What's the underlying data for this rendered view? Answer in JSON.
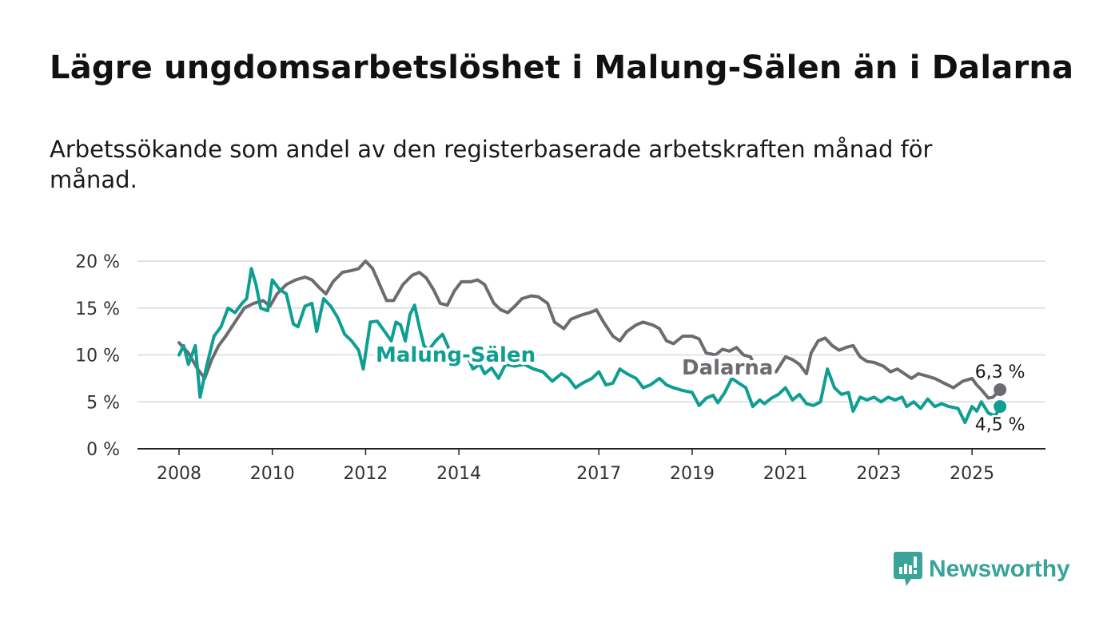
{
  "title": "Lägre ungdomsarbetslöshet i Malung-Sälen än i Dalarna",
  "subtitle": "Arbetssökande som andel av den registerbaserade arbetskraften månad för månad.",
  "brand": {
    "name": "Newsworthy",
    "color": "#3aa39a",
    "icon": "newsworthy-logo-icon"
  },
  "chart_data": {
    "type": "line",
    "title": "Lägre ungdomsarbetslöshet i Malung-Sälen än i Dalarna",
    "subtitle": "Arbetssökande som andel av den registerbaserade arbetskraften månad för månad.",
    "xlabel": "",
    "ylabel": "",
    "xlim": [
      2008.0,
      2025.7
    ],
    "ylim": [
      0,
      20
    ],
    "y_ticks": [
      0,
      5,
      10,
      15,
      20
    ],
    "y_tick_labels": [
      "0 %",
      "5 %",
      "10 %",
      "15 %",
      "20 %"
    ],
    "x_ticks": [
      2008,
      2010,
      2012,
      2014,
      2017,
      2019,
      2021,
      2023,
      2025
    ],
    "x_tick_labels": [
      "2008",
      "2010",
      "2012",
      "2014",
      "2017",
      "2019",
      "2021",
      "2023",
      "2025"
    ],
    "grid": true,
    "series": [
      {
        "name": "Dalarna",
        "color": "#6e6b70",
        "end_label": "6,3 %",
        "points": [
          [
            2008.0,
            11.3
          ],
          [
            2008.2,
            10.2
          ],
          [
            2008.4,
            8.5
          ],
          [
            2008.55,
            7.5
          ],
          [
            2008.7,
            9.5
          ],
          [
            2008.85,
            11.0
          ],
          [
            2009.0,
            12.0
          ],
          [
            2009.2,
            13.5
          ],
          [
            2009.4,
            15.0
          ],
          [
            2009.6,
            15.5
          ],
          [
            2009.8,
            15.8
          ],
          [
            2009.95,
            15.2
          ],
          [
            2010.1,
            16.5
          ],
          [
            2010.3,
            17.5
          ],
          [
            2010.5,
            18.0
          ],
          [
            2010.7,
            18.3
          ],
          [
            2010.85,
            18.0
          ],
          [
            2011.0,
            17.2
          ],
          [
            2011.15,
            16.5
          ],
          [
            2011.3,
            17.8
          ],
          [
            2011.5,
            18.8
          ],
          [
            2011.7,
            19.0
          ],
          [
            2011.85,
            19.2
          ],
          [
            2012.0,
            20.0
          ],
          [
            2012.15,
            19.2
          ],
          [
            2012.3,
            17.5
          ],
          [
            2012.45,
            15.8
          ],
          [
            2012.6,
            15.8
          ],
          [
            2012.8,
            17.5
          ],
          [
            2013.0,
            18.5
          ],
          [
            2013.15,
            18.8
          ],
          [
            2013.3,
            18.2
          ],
          [
            2013.45,
            17.0
          ],
          [
            2013.6,
            15.5
          ],
          [
            2013.75,
            15.3
          ],
          [
            2013.9,
            16.8
          ],
          [
            2014.05,
            17.8
          ],
          [
            2014.25,
            17.8
          ],
          [
            2014.4,
            18.0
          ],
          [
            2014.55,
            17.5
          ],
          [
            2014.75,
            15.5
          ],
          [
            2014.9,
            14.8
          ],
          [
            2015.05,
            14.5
          ],
          [
            2015.2,
            15.2
          ],
          [
            2015.35,
            16.0
          ],
          [
            2015.55,
            16.3
          ],
          [
            2015.7,
            16.2
          ],
          [
            2015.9,
            15.5
          ],
          [
            2016.05,
            13.5
          ],
          [
            2016.25,
            12.8
          ],
          [
            2016.4,
            13.8
          ],
          [
            2016.6,
            14.2
          ],
          [
            2016.8,
            14.5
          ],
          [
            2016.95,
            14.8
          ],
          [
            2017.1,
            13.5
          ],
          [
            2017.3,
            12.0
          ],
          [
            2017.45,
            11.5
          ],
          [
            2017.6,
            12.5
          ],
          [
            2017.8,
            13.2
          ],
          [
            2017.95,
            13.5
          ],
          [
            2018.15,
            13.2
          ],
          [
            2018.3,
            12.8
          ],
          [
            2018.45,
            11.5
          ],
          [
            2018.6,
            11.2
          ],
          [
            2018.8,
            12.0
          ],
          [
            2019.0,
            12.0
          ],
          [
            2019.15,
            11.7
          ],
          [
            2019.3,
            10.2
          ],
          [
            2019.5,
            10.0
          ],
          [
            2019.65,
            10.6
          ],
          [
            2019.8,
            10.4
          ],
          [
            2019.95,
            10.8
          ],
          [
            2020.1,
            10.0
          ],
          [
            2020.25,
            9.8
          ],
          [
            2020.4,
            8.3
          ],
          [
            2020.6,
            8.0
          ],
          [
            2020.8,
            8.2
          ],
          [
            2021.0,
            9.8
          ],
          [
            2021.15,
            9.5
          ],
          [
            2021.3,
            9.0
          ],
          [
            2021.45,
            8.0
          ],
          [
            2021.55,
            10.2
          ],
          [
            2021.7,
            11.5
          ],
          [
            2021.85,
            11.8
          ],
          [
            2022.0,
            11.0
          ],
          [
            2022.15,
            10.5
          ],
          [
            2022.3,
            10.8
          ],
          [
            2022.45,
            11.0
          ],
          [
            2022.6,
            9.8
          ],
          [
            2022.75,
            9.3
          ],
          [
            2022.9,
            9.2
          ],
          [
            2023.1,
            8.8
          ],
          [
            2023.25,
            8.2
          ],
          [
            2023.4,
            8.5
          ],
          [
            2023.55,
            8.0
          ],
          [
            2023.7,
            7.5
          ],
          [
            2023.85,
            8.0
          ],
          [
            2024.0,
            7.8
          ],
          [
            2024.2,
            7.5
          ],
          [
            2024.4,
            7.0
          ],
          [
            2024.6,
            6.5
          ],
          [
            2024.8,
            7.2
          ],
          [
            2025.0,
            7.5
          ],
          [
            2025.1,
            6.8
          ],
          [
            2025.2,
            6.3
          ],
          [
            2025.35,
            5.4
          ],
          [
            2025.45,
            5.5
          ],
          [
            2025.6,
            6.3
          ]
        ]
      },
      {
        "name": "Malung-Sälen",
        "color": "#0e9e92",
        "end_label": "4,5 %",
        "points": [
          [
            2008.0,
            10.0
          ],
          [
            2008.1,
            11.0
          ],
          [
            2008.2,
            9.0
          ],
          [
            2008.35,
            11.0
          ],
          [
            2008.45,
            5.5
          ],
          [
            2008.6,
            9.0
          ],
          [
            2008.75,
            12.0
          ],
          [
            2008.9,
            13.0
          ],
          [
            2009.05,
            15.0
          ],
          [
            2009.2,
            14.5
          ],
          [
            2009.35,
            15.5
          ],
          [
            2009.45,
            16.0
          ],
          [
            2009.55,
            19.2
          ],
          [
            2009.65,
            17.5
          ],
          [
            2009.75,
            15.0
          ],
          [
            2009.9,
            14.7
          ],
          [
            2010.0,
            18.0
          ],
          [
            2010.15,
            17.0
          ],
          [
            2010.3,
            16.5
          ],
          [
            2010.45,
            13.3
          ],
          [
            2010.55,
            13.0
          ],
          [
            2010.7,
            15.2
          ],
          [
            2010.85,
            15.5
          ],
          [
            2010.95,
            12.5
          ],
          [
            2011.1,
            16.0
          ],
          [
            2011.25,
            15.2
          ],
          [
            2011.4,
            14.0
          ],
          [
            2011.55,
            12.2
          ],
          [
            2011.7,
            11.5
          ],
          [
            2011.85,
            10.5
          ],
          [
            2011.95,
            8.5
          ],
          [
            2012.1,
            13.5
          ],
          [
            2012.25,
            13.6
          ],
          [
            2012.45,
            12.2
          ],
          [
            2012.55,
            11.5
          ],
          [
            2012.65,
            13.5
          ],
          [
            2012.75,
            13.2
          ],
          [
            2012.85,
            11.5
          ],
          [
            2012.95,
            14.3
          ],
          [
            2013.05,
            15.3
          ],
          [
            2013.15,
            13.0
          ],
          [
            2013.25,
            11.0
          ],
          [
            2013.35,
            10.5
          ],
          [
            2013.5,
            11.5
          ],
          [
            2013.65,
            12.2
          ],
          [
            2013.8,
            10.5
          ],
          [
            2014.0,
            9.5
          ],
          [
            2014.15,
            10.2
          ],
          [
            2014.3,
            8.5
          ],
          [
            2014.45,
            9.0
          ],
          [
            2014.55,
            8.0
          ],
          [
            2014.7,
            8.6
          ],
          [
            2014.85,
            7.5
          ],
          [
            2015.0,
            9.0
          ],
          [
            2015.2,
            8.8
          ],
          [
            2015.4,
            9.0
          ],
          [
            2015.6,
            8.5
          ],
          [
            2015.8,
            8.2
          ],
          [
            2016.0,
            7.2
          ],
          [
            2016.2,
            8.0
          ],
          [
            2016.35,
            7.5
          ],
          [
            2016.5,
            6.5
          ],
          [
            2016.65,
            7.0
          ],
          [
            2016.85,
            7.5
          ],
          [
            2017.0,
            8.2
          ],
          [
            2017.15,
            6.8
          ],
          [
            2017.3,
            7.0
          ],
          [
            2017.45,
            8.5
          ],
          [
            2017.6,
            8.0
          ],
          [
            2017.8,
            7.5
          ],
          [
            2017.95,
            6.5
          ],
          [
            2018.1,
            6.8
          ],
          [
            2018.3,
            7.5
          ],
          [
            2018.45,
            6.8
          ],
          [
            2018.6,
            6.5
          ],
          [
            2018.8,
            6.2
          ],
          [
            2019.0,
            6.0
          ],
          [
            2019.15,
            4.6
          ],
          [
            2019.3,
            5.4
          ],
          [
            2019.45,
            5.7
          ],
          [
            2019.55,
            4.9
          ],
          [
            2019.7,
            6.0
          ],
          [
            2019.85,
            7.5
          ],
          [
            2020.0,
            7.0
          ],
          [
            2020.15,
            6.5
          ],
          [
            2020.3,
            4.5
          ],
          [
            2020.45,
            5.2
          ],
          [
            2020.55,
            4.8
          ],
          [
            2020.7,
            5.4
          ],
          [
            2020.85,
            5.8
          ],
          [
            2021.0,
            6.5
          ],
          [
            2021.15,
            5.2
          ],
          [
            2021.3,
            5.8
          ],
          [
            2021.45,
            4.8
          ],
          [
            2021.6,
            4.6
          ],
          [
            2021.75,
            5.0
          ],
          [
            2021.9,
            8.5
          ],
          [
            2022.05,
            6.5
          ],
          [
            2022.2,
            5.8
          ],
          [
            2022.35,
            6.0
          ],
          [
            2022.45,
            4.0
          ],
          [
            2022.6,
            5.5
          ],
          [
            2022.75,
            5.2
          ],
          [
            2022.9,
            5.5
          ],
          [
            2023.05,
            5.0
          ],
          [
            2023.2,
            5.5
          ],
          [
            2023.35,
            5.2
          ],
          [
            2023.5,
            5.5
          ],
          [
            2023.6,
            4.5
          ],
          [
            2023.75,
            5.0
          ],
          [
            2023.9,
            4.3
          ],
          [
            2024.05,
            5.3
          ],
          [
            2024.2,
            4.5
          ],
          [
            2024.35,
            4.8
          ],
          [
            2024.5,
            4.5
          ],
          [
            2024.7,
            4.3
          ],
          [
            2024.85,
            2.8
          ],
          [
            2025.0,
            4.5
          ],
          [
            2025.1,
            4.0
          ],
          [
            2025.2,
            5.0
          ],
          [
            2025.35,
            3.8
          ],
          [
            2025.5,
            3.5
          ],
          [
            2025.6,
            4.5
          ]
        ]
      }
    ],
    "annotations": [
      {
        "text": "Malung-Sälen",
        "series": "Malung-Sälen"
      },
      {
        "text": "Dalarna",
        "series": "Dalarna"
      },
      {
        "text": "6,3 %",
        "series": "Dalarna",
        "position": "end"
      },
      {
        "text": "4,5 %",
        "series": "Malung-Sälen",
        "position": "end"
      }
    ]
  }
}
